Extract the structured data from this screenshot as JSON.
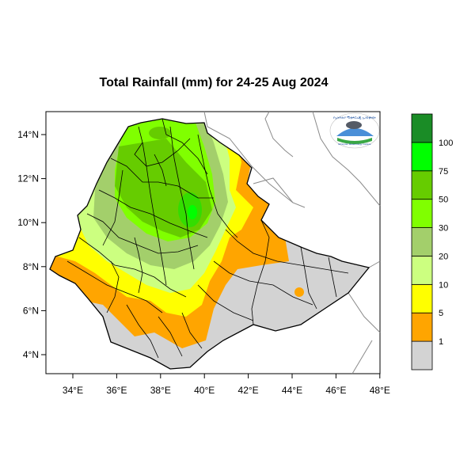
{
  "title": "Total Rainfall (mm) for 24-25 Aug 2024",
  "map": {
    "region": "Ethiopia",
    "lon_range": [
      33,
      48.2
    ],
    "lat_range": [
      3.2,
      15.1
    ],
    "x_ticks": [
      "34°E",
      "36°E",
      "38°E",
      "40°E",
      "42°E",
      "44°E",
      "46°E",
      "48°E"
    ],
    "y_ticks": [
      "14°N",
      "12°N",
      "10°N",
      "8°N",
      "6°N",
      "4°N"
    ],
    "no_rain_color": "#d3d3d3",
    "border_color": "#000000",
    "background_color": "#ffffff"
  },
  "legend": {
    "bins": [
      {
        "label": "",
        "color": "#d3d3d3"
      },
      {
        "label": "1",
        "color": "#ffa500"
      },
      {
        "label": "5",
        "color": "#ffff00"
      },
      {
        "label": "10",
        "color": "#ccff80"
      },
      {
        "label": "20",
        "color": "#a3cf6b"
      },
      {
        "label": "30",
        "color": "#80ff00"
      },
      {
        "label": "50",
        "color": "#66cc00"
      },
      {
        "label": "75",
        "color": "#00ff00"
      },
      {
        "label": "100",
        "color": "#1a8c26"
      }
    ]
  },
  "logo": {
    "name": "ethiopian-meteorology-institute-logo",
    "text": "Ethiopian Meteorology Institute"
  }
}
